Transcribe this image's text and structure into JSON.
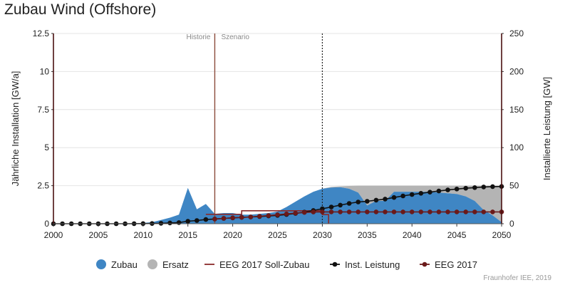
{
  "chart_data": {
    "type": "area",
    "title": "Zubau Wind (Offshore)",
    "ylabel_left": "Jährliche Installation [GW/a]",
    "ylabel_right": "Installierte Leistung [GW]",
    "xlim": [
      2000,
      2050
    ],
    "ylim_left": [
      0,
      12.5
    ],
    "ylim_right": [
      0,
      250
    ],
    "x_ticks": [
      "2000",
      "2005",
      "2010",
      "2015",
      "2020",
      "2025",
      "2030",
      "2035",
      "2040",
      "2045",
      "2050"
    ],
    "y_ticks_left": [
      "0",
      "2.5",
      "5",
      "7.5",
      "10",
      "12.5"
    ],
    "y_ticks_right": [
      "0",
      "50",
      "100",
      "150",
      "200",
      "250"
    ],
    "grid": true,
    "phase_labels": {
      "history": "Historie",
      "scenario": "Szenario"
    },
    "divider_year": 2018,
    "marker_year": 2030,
    "series": [
      {
        "name": "Zubau",
        "kind": "area",
        "axis": "left",
        "color": "#3f86c4",
        "points": [
          [
            2000,
            0
          ],
          [
            2008,
            0
          ],
          [
            2009,
            0.02
          ],
          [
            2010,
            0.05
          ],
          [
            2011,
            0.1
          ],
          [
            2012,
            0.25
          ],
          [
            2013,
            0.4
          ],
          [
            2014,
            0.6
          ],
          [
            2015,
            2.35
          ],
          [
            2016,
            0.95
          ],
          [
            2017,
            1.3
          ],
          [
            2018,
            0.65
          ],
          [
            2019,
            0.7
          ],
          [
            2020,
            0.7
          ],
          [
            2021,
            0.6
          ],
          [
            2022,
            0.6
          ],
          [
            2023,
            0.65
          ],
          [
            2024,
            0.7
          ],
          [
            2025,
            0.8
          ],
          [
            2026,
            1.1
          ],
          [
            2027,
            1.45
          ],
          [
            2028,
            1.8
          ],
          [
            2029,
            2.1
          ],
          [
            2030,
            2.3
          ],
          [
            2031,
            2.38
          ],
          [
            2032,
            2.4
          ],
          [
            2033,
            2.3
          ],
          [
            2034,
            2.05
          ],
          [
            2035,
            1.2
          ],
          [
            2036,
            1.5
          ],
          [
            2037,
            1.5
          ],
          [
            2038,
            2.1
          ],
          [
            2039,
            2.1
          ],
          [
            2040,
            2.1
          ],
          [
            2041,
            2.1
          ],
          [
            2042,
            2.1
          ],
          [
            2043,
            2.05
          ],
          [
            2044,
            2.0
          ],
          [
            2045,
            1.95
          ],
          [
            2046,
            1.8
          ],
          [
            2047,
            1.5
          ],
          [
            2048,
            0.9
          ],
          [
            2049,
            0.55
          ],
          [
            2050,
            0.1
          ]
        ]
      },
      {
        "name": "Ersatz",
        "kind": "area",
        "axis": "left",
        "color": "#b4b4b4",
        "stack_top": [
          [
            2028,
            1.8
          ],
          [
            2029,
            2.1
          ],
          [
            2030,
            2.3
          ],
          [
            2031,
            2.42
          ],
          [
            2032,
            2.46
          ],
          [
            2033,
            2.48
          ],
          [
            2034,
            2.5
          ],
          [
            2035,
            2.5
          ],
          [
            2040,
            2.5
          ],
          [
            2045,
            2.5
          ],
          [
            2050,
            2.5
          ]
        ]
      },
      {
        "name": "EEG 2017 Soll-Zubau",
        "kind": "step",
        "axis": "left",
        "color": "#8b2a2a",
        "points": [
          [
            2017,
            0.62
          ],
          [
            2021,
            0.62
          ],
          [
            2021,
            0.85
          ],
          [
            2030,
            0.85
          ],
          [
            2030,
            0.6
          ],
          [
            2030.7,
            0.6
          ],
          [
            2030.7,
            0
          ]
        ]
      },
      {
        "name": "Inst. Leistung",
        "kind": "line-marker",
        "axis": "right",
        "color": "#111111",
        "points": [
          [
            2000,
            0
          ],
          [
            2001,
            0
          ],
          [
            2002,
            0
          ],
          [
            2003,
            0
          ],
          [
            2004,
            0
          ],
          [
            2005,
            0
          ],
          [
            2006,
            0
          ],
          [
            2007,
            0
          ],
          [
            2008,
            0
          ],
          [
            2009,
            0.1
          ],
          [
            2010,
            0.2
          ],
          [
            2011,
            0.3
          ],
          [
            2012,
            0.6
          ],
          [
            2013,
            1
          ],
          [
            2014,
            1.5
          ],
          [
            2015,
            3.3
          ],
          [
            2016,
            4.2
          ],
          [
            2017,
            5.5
          ],
          [
            2018,
            6.2
          ],
          [
            2019,
            7
          ],
          [
            2020,
            7.7
          ],
          [
            2021,
            8.3
          ],
          [
            2022,
            8.9
          ],
          [
            2023,
            9.5
          ],
          [
            2024,
            10.2
          ],
          [
            2025,
            11
          ],
          [
            2026,
            12.1
          ],
          [
            2027,
            13.5
          ],
          [
            2028,
            15.3
          ],
          [
            2029,
            17.4
          ],
          [
            2030,
            19.7
          ],
          [
            2031,
            22
          ],
          [
            2032,
            24.4
          ],
          [
            2033,
            26.7
          ],
          [
            2034,
            28.6
          ],
          [
            2035,
            29.5
          ],
          [
            2036,
            31
          ],
          [
            2037,
            32.4
          ],
          [
            2038,
            34.5
          ],
          [
            2039,
            36.5
          ],
          [
            2040,
            38.4
          ],
          [
            2041,
            40
          ],
          [
            2042,
            41.5
          ],
          [
            2043,
            43
          ],
          [
            2044,
            44.4
          ],
          [
            2045,
            45.6
          ],
          [
            2046,
            46.6
          ],
          [
            2047,
            47.5
          ],
          [
            2048,
            48.3
          ],
          [
            2049,
            48.8
          ],
          [
            2050,
            49
          ]
        ]
      },
      {
        "name": "EEG 2017",
        "kind": "line-marker",
        "axis": "right",
        "color": "#6b1a1a",
        "points": [
          [
            2018,
            6.2
          ],
          [
            2019,
            7
          ],
          [
            2020,
            7.7
          ],
          [
            2021,
            8.3
          ],
          [
            2022,
            8.9
          ],
          [
            2023,
            9.8
          ],
          [
            2024,
            10.8
          ],
          [
            2025,
            11.8
          ],
          [
            2026,
            12.9
          ],
          [
            2027,
            13.9
          ],
          [
            2028,
            14.8
          ],
          [
            2029,
            15.4
          ],
          [
            2030,
            15.5
          ],
          [
            2031,
            15.5
          ],
          [
            2032,
            15.5
          ],
          [
            2033,
            15.5
          ],
          [
            2034,
            15.5
          ],
          [
            2035,
            15.5
          ],
          [
            2036,
            15.5
          ],
          [
            2037,
            15.5
          ],
          [
            2038,
            15.5
          ],
          [
            2039,
            15.5
          ],
          [
            2040,
            15.5
          ],
          [
            2041,
            15.5
          ],
          [
            2042,
            15.5
          ],
          [
            2043,
            15.5
          ],
          [
            2044,
            15.5
          ],
          [
            2045,
            15.5
          ],
          [
            2046,
            15.5
          ],
          [
            2047,
            15.5
          ],
          [
            2048,
            15.5
          ],
          [
            2049,
            15.5
          ],
          [
            2050,
            15.5
          ]
        ]
      }
    ],
    "legend": {
      "placement": "bottom",
      "items": [
        {
          "label": "Zubau",
          "symbol": "circle",
          "color": "#3f86c4"
        },
        {
          "label": "Ersatz",
          "symbol": "circle",
          "color": "#b4b4b4"
        },
        {
          "label": "EEG 2017 Soll-Zubau",
          "symbol": "line",
          "color": "#8b2a2a"
        },
        {
          "label": "Inst. Leistung",
          "symbol": "line-dot",
          "color": "#111111"
        },
        {
          "label": "EEG 2017",
          "symbol": "line-dot",
          "color": "#6b1a1a"
        }
      ]
    }
  },
  "credit": "Fraunhofer IEE, 2019"
}
